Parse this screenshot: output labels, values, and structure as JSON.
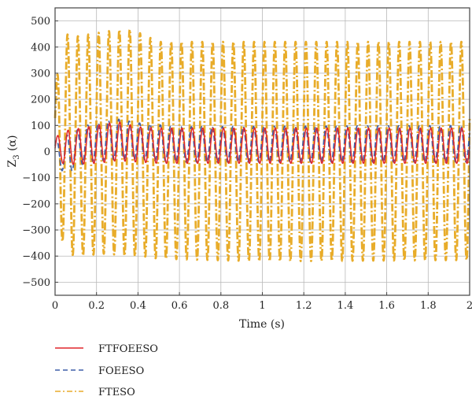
{
  "chart_data": {
    "type": "line",
    "xlabel": "Time (s)",
    "ylabel": "Z",
    "ylabel_sub": "3",
    "ylabel_suffix": " (α)",
    "xlim": [
      0,
      2
    ],
    "ylim": [
      -550,
      550
    ],
    "x_ticks": [
      0,
      0.2,
      0.4,
      0.6,
      0.8,
      1,
      1.2,
      1.4,
      1.6,
      1.8,
      2
    ],
    "x_tick_labels": [
      "0",
      "0.2",
      "0.4",
      "0.6",
      "0.8",
      "1",
      "1.2",
      "1.4",
      "1.6",
      "1.8",
      "2"
    ],
    "y_ticks": [
      -500,
      -400,
      -300,
      -200,
      -100,
      0,
      100,
      200,
      300,
      400,
      500
    ],
    "y_tick_labels": [
      "−500",
      "−400",
      "−300",
      "−200",
      "−100",
      "0",
      "100",
      "200",
      "300",
      "400",
      "500"
    ],
    "grid": true,
    "legend_position": "below",
    "series": [
      {
        "name": "FTFOEESO",
        "color": "#e0262b",
        "style": "solid",
        "frequency_hz": 20,
        "envelope": {
          "t": [
            0,
            0.05,
            0.2,
            0.3,
            0.4,
            0.5,
            2.0
          ],
          "max": [
            55,
            80,
            100,
            115,
            95,
            90,
            90
          ],
          "min": [
            -30,
            -50,
            -45,
            -35,
            -40,
            -45,
            -45
          ]
        }
      },
      {
        "name": "FOEESO",
        "color": "#3f5fa8",
        "style": "dashed",
        "frequency_hz": 20,
        "envelope": {
          "t": [
            0,
            0.05,
            0.15,
            0.3,
            0.4,
            0.6,
            2.0
          ],
          "max": [
            40,
            60,
            100,
            125,
            110,
            95,
            100
          ],
          "min": [
            -40,
            -90,
            -40,
            -30,
            -30,
            -40,
            -40
          ]
        }
      },
      {
        "name": "FTESO",
        "color": "#e8ac2a",
        "style": "dashdot",
        "frequency_hz": 20,
        "envelope": {
          "t": [
            0,
            0.02,
            0.05,
            0.1,
            0.25,
            0.35,
            0.42,
            0.5,
            1.0,
            2.0
          ],
          "max": [
            230,
            350,
            450,
            440,
            460,
            470,
            450,
            420,
            420,
            420
          ],
          "min": [
            -60,
            -300,
            -385,
            -400,
            -390,
            -400,
            -400,
            -410,
            -420,
            -415
          ]
        }
      }
    ]
  }
}
